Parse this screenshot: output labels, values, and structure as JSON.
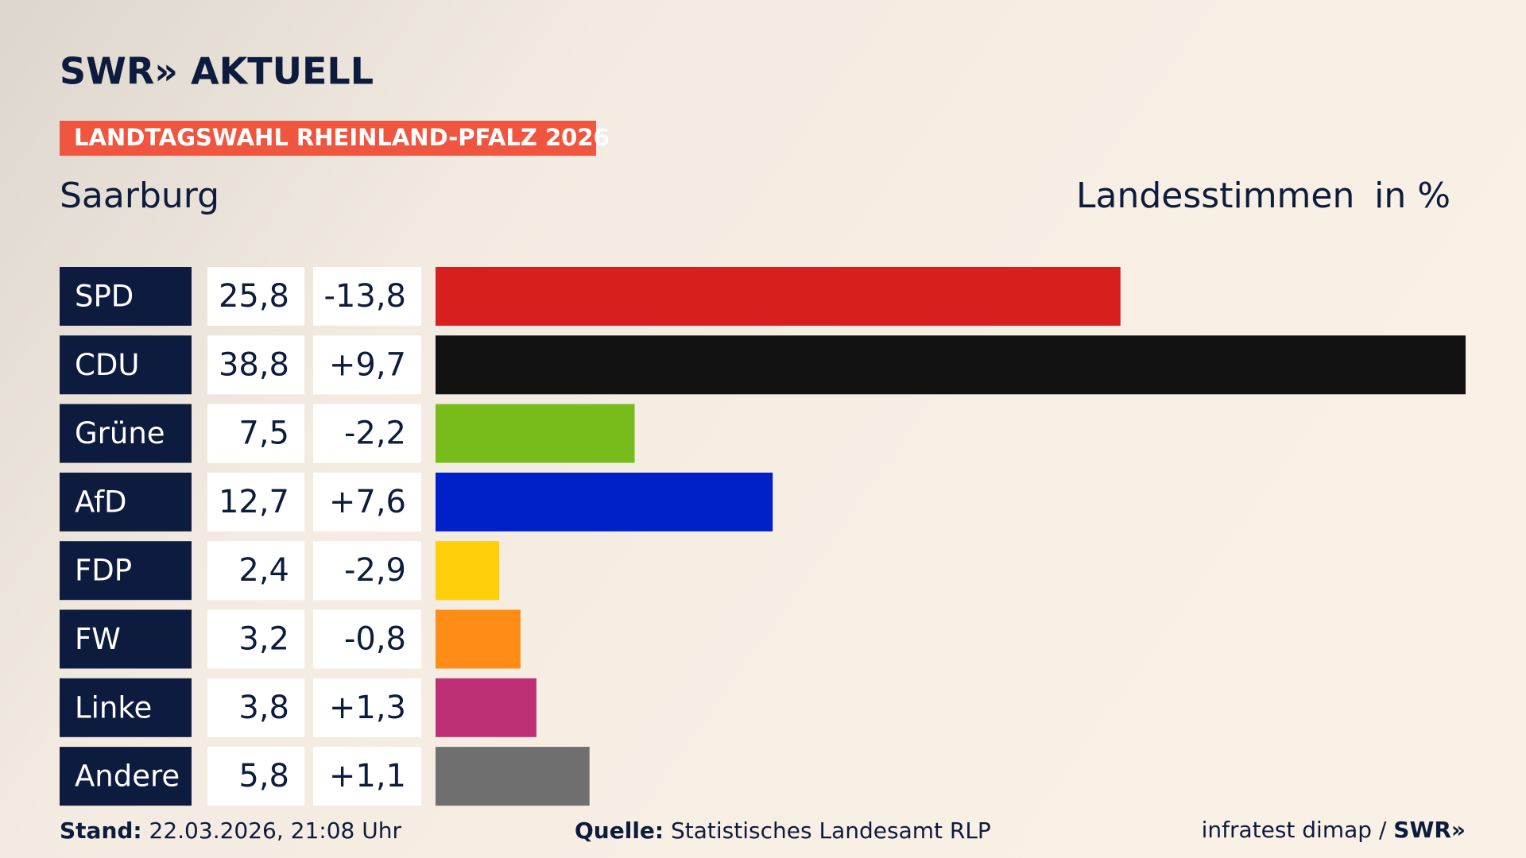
{
  "header": {
    "logo": "SWR» AKTUELL",
    "tag": "LANDTAGSWAHL RHEINLAND-PFALZ 2026"
  },
  "chart_data": {
    "type": "bar",
    "orientation": "horizontal",
    "title": "Saarburg",
    "value_heading": "Landesstimmen",
    "unit": "in %",
    "categories": [
      "SPD",
      "CDU",
      "Grüne",
      "AfD",
      "FDP",
      "FW",
      "Linke",
      "Andere"
    ],
    "values": [
      25.8,
      38.8,
      7.5,
      12.7,
      2.4,
      3.2,
      3.8,
      5.8
    ],
    "value_labels": [
      "25,8",
      "38,8",
      "7,5",
      "12,7",
      "2,4",
      "3,2",
      "3,8",
      "5,8"
    ],
    "changes": [
      -13.8,
      9.7,
      -2.2,
      7.6,
      -2.9,
      -0.8,
      1.3,
      1.1
    ],
    "change_labels": [
      "-13,8",
      "+9,7",
      "-2,2",
      "+7,6",
      "-2,9",
      "-0,8",
      "+1,3",
      "+1,1"
    ],
    "colors": [
      "#d71f1f",
      "#121212",
      "#78bc1b",
      "#0021c8",
      "#ffcf0b",
      "#ff8c16",
      "#bd3075",
      "#6f6f70"
    ],
    "label_color": "#0d1b3e"
  },
  "footer": {
    "stand_label": "Stand:",
    "stand": "22.03.2026, 21:08 Uhr",
    "source_label": "Quelle:",
    "source": "Statistisches Landesamt RLP",
    "credit": "infratest dimap /",
    "brand": "SWR»"
  }
}
